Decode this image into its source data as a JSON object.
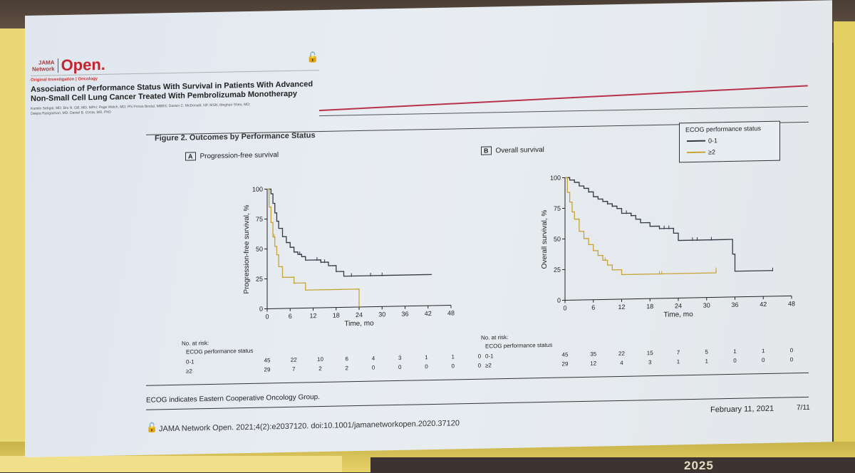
{
  "header": {
    "brand_small": "JAMA\nNetwork",
    "brand_big": "Open.",
    "kicker": "Original Investigation | Oncology",
    "title": "Association of Performance Status With Survival in Patients With Advanced Non-Small Cell Lung Cancer Treated With Pembrolizumab Monotherapy",
    "authors": "Kamilo Sehgal, MD; Bru N. Gill, MD, MPH; Page Welch, MD; Phi Porwa Bindal, MBBS; Darwin C. McDonald, NP, MSN; Meghan Shea, MD; Deepa Rangachari, MD; Daniel B. Costa, MD, PhD"
  },
  "figure": {
    "title": "Figure 2. Outcomes by Performance Status",
    "footnote": "ECOG indicates Eastern Cooperative Oncology Group."
  },
  "legend": {
    "title": "ECOG performance status",
    "items": [
      {
        "label": "0-1",
        "color": "#333a44"
      },
      {
        "label": "≥2",
        "color": "#c7a435"
      }
    ]
  },
  "footer": {
    "citation": "JAMA Network Open. 2021;4(2):e2037120. doi:10.1001/jamanetworkopen.2020.37120",
    "date": "February 11, 2021",
    "page": "7/11"
  },
  "chart_data": [
    {
      "type": "line",
      "panel_letter": "A",
      "title": "Progression-free survival",
      "xlabel": "Time, mo",
      "ylabel": "Progression-free survival, %",
      "xlim": [
        0,
        48
      ],
      "ylim": [
        0,
        100
      ],
      "xticks": [
        0,
        6,
        12,
        18,
        24,
        30,
        36,
        42,
        48
      ],
      "yticks": [
        0,
        25,
        50,
        75,
        100
      ],
      "series": [
        {
          "name": "0-1",
          "color": "#333a44",
          "x": [
            0,
            1,
            1.5,
            2,
            2.5,
            3,
            4,
            5,
            6,
            7,
            8,
            9,
            10,
            12,
            14,
            16,
            18,
            20,
            22,
            26,
            30,
            36,
            42,
            43
          ],
          "y": [
            100,
            96,
            88,
            80,
            73,
            67,
            60,
            55,
            51,
            47,
            45,
            43,
            40,
            40,
            38,
            35,
            30,
            26,
            26,
            26,
            26,
            26,
            26,
            26
          ],
          "censor_x": [
            8.5,
            13,
            14,
            15,
            22,
            27,
            30
          ]
        },
        {
          "name": "≥2",
          "color": "#c7a435",
          "x": [
            0,
            0.5,
            1,
            1.5,
            2,
            2.5,
            3,
            4,
            6,
            7,
            10,
            12,
            18,
            22,
            24,
            24
          ],
          "y": [
            100,
            85,
            72,
            60,
            52,
            45,
            35,
            26,
            26,
            21,
            15,
            15,
            15,
            15,
            15,
            0
          ],
          "censor_x": [
            1.8,
            7
          ]
        }
      ],
      "risk_table": {
        "label": "No. at risk:",
        "sublabel": "ECOG performance status",
        "times": [
          0,
          6,
          12,
          18,
          24,
          30,
          36,
          42,
          48
        ],
        "rows": [
          {
            "group": "0-1",
            "values": [
              "45",
              "22",
              "10",
              "6",
              "4",
              "3",
              "1",
              "1",
              "0"
            ]
          },
          {
            "group": "≥2",
            "values": [
              "29",
              "7",
              "2",
              "2",
              "0",
              "0",
              "0",
              "0",
              "0"
            ]
          }
        ]
      }
    },
    {
      "type": "line",
      "panel_letter": "B",
      "title": "Overall survival",
      "xlabel": "Time, mo",
      "ylabel": "Overall survival, %",
      "xlim": [
        0,
        48
      ],
      "ylim": [
        0,
        100
      ],
      "xticks": [
        0,
        6,
        12,
        18,
        24,
        30,
        36,
        42,
        48
      ],
      "yticks": [
        0,
        25,
        50,
        75,
        100
      ],
      "series": [
        {
          "name": "0-1",
          "color": "#333a44",
          "x": [
            0,
            1,
            2,
            3,
            4,
            5,
            6,
            7,
            8,
            9,
            10,
            11,
            12,
            14,
            15,
            16,
            18,
            20,
            23,
            24,
            30,
            35,
            35.5,
            36,
            40,
            44
          ],
          "y": [
            100,
            98,
            96,
            93,
            91,
            88,
            84,
            82,
            80,
            78,
            76,
            74,
            70,
            68,
            65,
            62,
            59,
            57,
            53,
            47,
            47,
            47,
            35,
            21,
            21,
            21
          ],
          "censor_x": [
            5,
            9,
            10,
            13,
            14,
            20,
            21,
            22,
            27,
            28,
            31,
            44
          ]
        },
        {
          "name": "≥2",
          "color": "#c7a435",
          "x": [
            0,
            0.5,
            1,
            1.5,
            2,
            3,
            4,
            5,
            6,
            7,
            8,
            9,
            10,
            12,
            14,
            20,
            30,
            32
          ],
          "y": [
            100,
            88,
            80,
            72,
            66,
            56,
            50,
            45,
            40,
            36,
            32,
            28,
            24,
            20,
            20,
            20,
            20,
            22
          ],
          "censor_x": [
            7,
            8.5,
            20,
            20.5,
            32
          ]
        }
      ],
      "risk_table": {
        "label": "No. at risk:",
        "sublabel": "ECOG performance status",
        "times": [
          0,
          6,
          12,
          18,
          24,
          30,
          36,
          42,
          48
        ],
        "rows": [
          {
            "group": "0-1",
            "values": [
              "45",
              "35",
              "22",
              "15",
              "7",
              "5",
              "1",
              "1",
              "0"
            ]
          },
          {
            "group": "≥2",
            "values": [
              "29",
              "12",
              "4",
              "3",
              "1",
              "1",
              "0",
              "0",
              "0"
            ]
          }
        ]
      }
    }
  ]
}
